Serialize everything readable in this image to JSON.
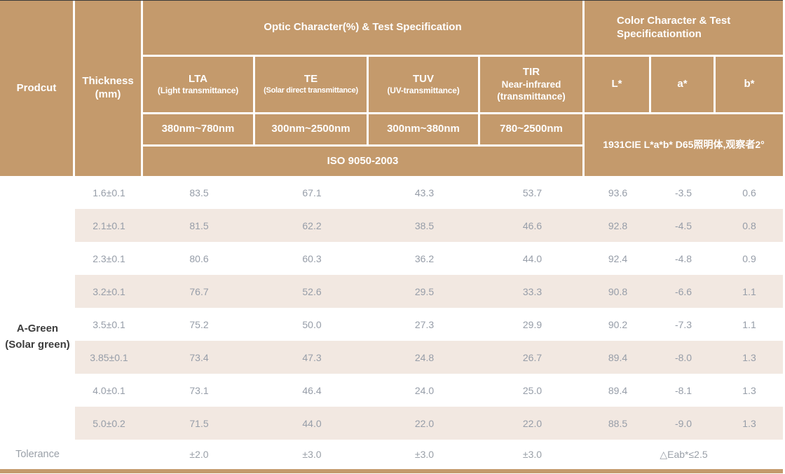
{
  "colors": {
    "header_bg": "#c49a6c",
    "row_shade": "#f2e8e1",
    "value_text": "#969da8",
    "product_text": "#3c3c3c",
    "header_text": "#ffffff"
  },
  "header": {
    "product": "Prodcut",
    "thickness_line1": "Thickness",
    "thickness_line2": "(mm)",
    "optic_group": "Optic Character(%) & Test Specification",
    "color_group_line1": "Color Character & Test",
    "color_group_line2": "Specificationtion",
    "optic_columns": [
      {
        "abbr": "LTA",
        "desc": "(Light transmittance)",
        "range": "380nm~780nm"
      },
      {
        "abbr": "TE",
        "desc": "(Solar direct transmittance)",
        "range": "300nm~2500nm"
      },
      {
        "abbr": "TUV",
        "desc": "(UV-transmittance)",
        "range": "300nm~380nm"
      },
      {
        "abbr": "TIR",
        "desc": "Near-infrared",
        "desc2": "(transmittance)",
        "range": "780~2500nm"
      }
    ],
    "color_columns": [
      {
        "label": "L*"
      },
      {
        "label": "a*"
      },
      {
        "label": "b*"
      }
    ],
    "iso_standard": "ISO 9050-2003",
    "cie_standard": "1931CIE L*a*b* D65照明体,观察者2°"
  },
  "product": {
    "name_line1": "A-Green",
    "name_line2": "(Solar green)"
  },
  "rows": [
    {
      "thickness": "1.6±0.1",
      "lta": "83.5",
      "te": "67.1",
      "tuv": "43.3",
      "tir": "53.7",
      "l_star": "93.6",
      "a_star": "-3.5",
      "b_star": "0.6"
    },
    {
      "thickness": "2.1±0.1",
      "lta": "81.5",
      "te": "62.2",
      "tuv": "38.5",
      "tir": "46.6",
      "l_star": "92.8",
      "a_star": "-4.5",
      "b_star": "0.8"
    },
    {
      "thickness": "2.3±0.1",
      "lta": "80.6",
      "te": "60.3",
      "tuv": "36.2",
      "tir": "44.0",
      "l_star": "92.4",
      "a_star": "-4.8",
      "b_star": "0.9"
    },
    {
      "thickness": "3.2±0.1",
      "lta": "76.7",
      "te": "52.6",
      "tuv": "29.5",
      "tir": "33.3",
      "l_star": "90.8",
      "a_star": "-6.6",
      "b_star": "1.1"
    },
    {
      "thickness": "3.5±0.1",
      "lta": "75.2",
      "te": "50.0",
      "tuv": "27.3",
      "tir": "29.9",
      "l_star": "90.2",
      "a_star": "-7.3",
      "b_star": "1.1"
    },
    {
      "thickness": "3.85±0.1",
      "lta": "73.4",
      "te": "47.3",
      "tuv": "24.8",
      "tir": "26.7",
      "l_star": "89.4",
      "a_star": "-8.0",
      "b_star": "1.3"
    },
    {
      "thickness": "4.0±0.1",
      "lta": "73.1",
      "te": "46.4",
      "tuv": "24.0",
      "tir": "25.0",
      "l_star": "89.4",
      "a_star": "-8.1",
      "b_star": "1.3"
    },
    {
      "thickness": "5.0±0.2",
      "lta": "71.5",
      "te": "44.0",
      "tuv": "22.0",
      "tir": "22.0",
      "l_star": "88.5",
      "a_star": "-9.0",
      "b_star": "1.3"
    }
  ],
  "tolerance": {
    "label": "Tolerance",
    "lta": "±2.0",
    "te": "±3.0",
    "tuv": "±3.0",
    "tir": "±3.0",
    "color_diff": "△Eab*≤2.5"
  }
}
